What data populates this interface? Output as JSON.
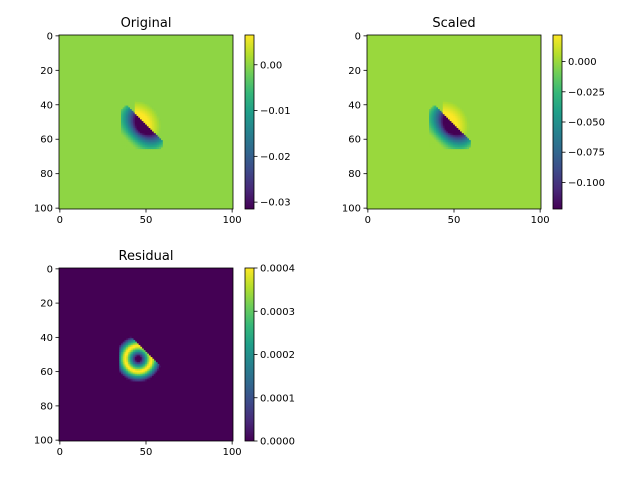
{
  "chart_data": [
    {
      "type": "heatmap",
      "title": "Original",
      "colormap": "viridis",
      "image_size": [
        101,
        101
      ],
      "xlim": [
        0,
        100
      ],
      "ylim": [
        100,
        0
      ],
      "xticks": [
        {
          "v": 0,
          "t": "0"
        },
        {
          "v": 50,
          "t": "50"
        },
        {
          "v": 100,
          "t": "100"
        }
      ],
      "yticks": [
        {
          "v": 0,
          "t": "0"
        },
        {
          "v": 20,
          "t": "20"
        },
        {
          "v": 40,
          "t": "40"
        },
        {
          "v": 60,
          "t": "60"
        },
        {
          "v": 80,
          "t": "80"
        },
        {
          "v": 100,
          "t": "100"
        }
      ],
      "vmin": -0.0315,
      "vmax": 0.0065,
      "background_value": 0.0,
      "colorbar_ticks": [
        {
          "v": 0.0,
          "t": "0.00"
        },
        {
          "v": -0.01,
          "t": "−0.01"
        },
        {
          "v": -0.02,
          "t": "−0.02"
        },
        {
          "v": -0.03,
          "t": "−0.03"
        }
      ]
    },
    {
      "type": "heatmap",
      "title": "Scaled",
      "colormap": "viridis",
      "image_size": [
        101,
        101
      ],
      "xlim": [
        0,
        100
      ],
      "ylim": [
        100,
        0
      ],
      "xticks": [
        {
          "v": 0,
          "t": "0"
        },
        {
          "v": 50,
          "t": "50"
        },
        {
          "v": 100,
          "t": "100"
        }
      ],
      "yticks": [
        {
          "v": 0,
          "t": "0"
        },
        {
          "v": 20,
          "t": "20"
        },
        {
          "v": 40,
          "t": "40"
        },
        {
          "v": 60,
          "t": "60"
        },
        {
          "v": 80,
          "t": "80"
        },
        {
          "v": 100,
          "t": "100"
        }
      ],
      "vmin": -0.122,
      "vmax": 0.022,
      "background_value": 0.0,
      "colorbar_ticks": [
        {
          "v": 0.0,
          "t": "0.000"
        },
        {
          "v": -0.025,
          "t": "−0.025"
        },
        {
          "v": -0.05,
          "t": "−0.050"
        },
        {
          "v": -0.075,
          "t": "−0.075"
        },
        {
          "v": -0.1,
          "t": "−0.100"
        }
      ]
    },
    {
      "type": "heatmap",
      "title": "Residual",
      "colormap": "viridis",
      "image_size": [
        101,
        101
      ],
      "xlim": [
        0,
        100
      ],
      "ylim": [
        100,
        0
      ],
      "xticks": [
        {
          "v": 0,
          "t": "0"
        },
        {
          "v": 50,
          "t": "50"
        },
        {
          "v": 100,
          "t": "100"
        }
      ],
      "yticks": [
        {
          "v": 0,
          "t": "0"
        },
        {
          "v": 20,
          "t": "20"
        },
        {
          "v": 40,
          "t": "40"
        },
        {
          "v": 60,
          "t": "60"
        },
        {
          "v": 80,
          "t": "80"
        },
        {
          "v": 100,
          "t": "100"
        }
      ],
      "vmin": 0.0,
      "vmax": 0.0004,
      "background_value": 0.0,
      "colorbar_ticks": [
        {
          "v": 0.0,
          "t": "0.0000"
        },
        {
          "v": 0.0001,
          "t": "0.0001"
        },
        {
          "v": 0.0002,
          "t": "0.0002"
        },
        {
          "v": 0.0003,
          "t": "0.0003"
        },
        {
          "v": 0.0004,
          "t": "0.0004"
        }
      ]
    }
  ]
}
